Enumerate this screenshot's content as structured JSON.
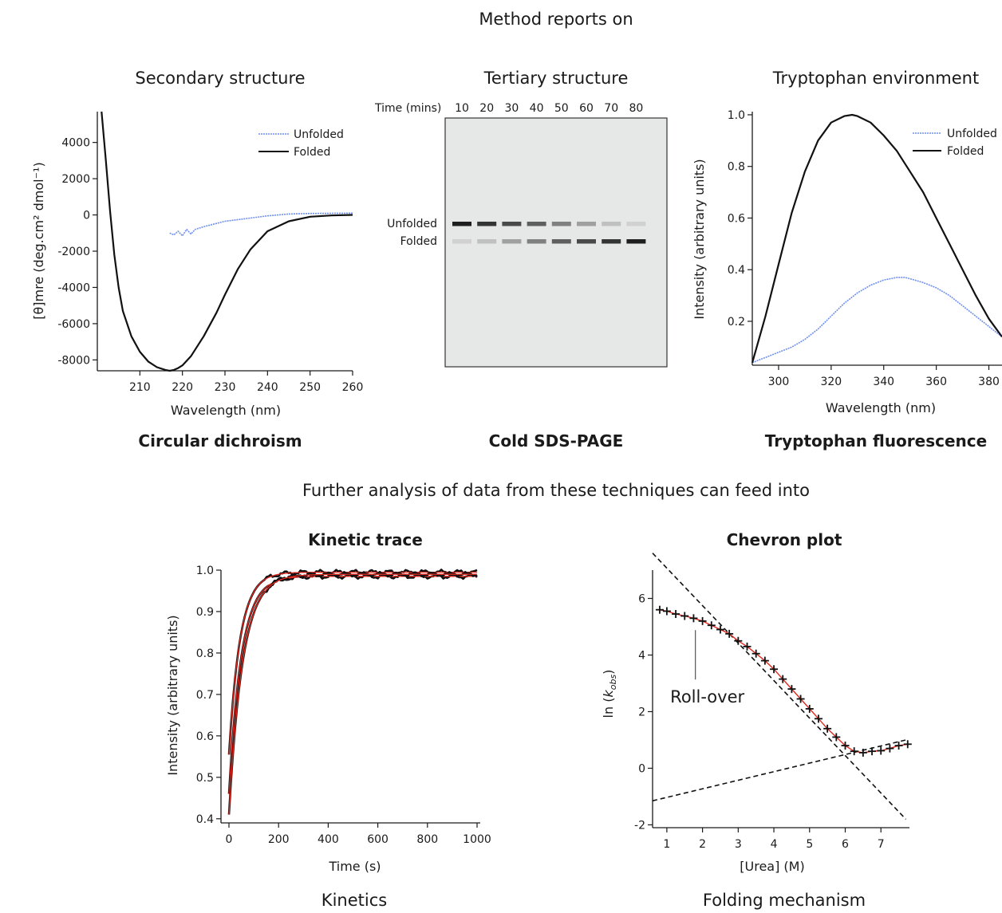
{
  "header": {
    "top_title": "Method reports on",
    "middle_text": "Further analysis of data from these techniques can feed into"
  },
  "colors": {
    "unfolded": "#6f8ff0",
    "folded": "#111111",
    "fit": "#e0281f",
    "gel_bg": "#e6e8e8"
  },
  "chart_data": [
    {
      "id": "cd",
      "type": "line",
      "title": "Secondary structure",
      "caption": "Circular dichroism",
      "xlabel": "Wavelength (nm)",
      "ylabel": "[θ]mre (deg.cm² dmol⁻¹)",
      "xlim": [
        200,
        260
      ],
      "ylim": [
        -8600,
        5700
      ],
      "xticks": [
        210,
        220,
        230,
        240,
        250,
        260
      ],
      "yticks": [
        4000,
        2000,
        0,
        -2000,
        -4000,
        -6000,
        -8000
      ],
      "legend": "top-right",
      "series": [
        {
          "name": "Unfolded",
          "style": "unfolded",
          "x": [
            217,
            218,
            219,
            220,
            221,
            222,
            223,
            225,
            230,
            235,
            240,
            245,
            250,
            255,
            260
          ],
          "y": [
            -1000,
            -1100,
            -900,
            -1150,
            -800,
            -1050,
            -800,
            -650,
            -350,
            -200,
            -50,
            50,
            80,
            90,
            100
          ]
        },
        {
          "name": "Folded",
          "style": "folded",
          "x": [
            201,
            202,
            203,
            204,
            205,
            206,
            208,
            210,
            212,
            214,
            216,
            217,
            218,
            219,
            220,
            222,
            225,
            228,
            230,
            233,
            236,
            240,
            245,
            250,
            255,
            260
          ],
          "y": [
            5700,
            3000,
            200,
            -2200,
            -4000,
            -5300,
            -6700,
            -7550,
            -8100,
            -8400,
            -8550,
            -8600,
            -8550,
            -8450,
            -8300,
            -7800,
            -6700,
            -5400,
            -4400,
            -3000,
            -1900,
            -900,
            -350,
            -100,
            -30,
            0
          ]
        }
      ]
    },
    {
      "id": "gel",
      "type": "heatmap",
      "title": "Tertiary structure",
      "caption": "Cold SDS-PAGE",
      "time_label": "Time (mins)",
      "times": [
        "10",
        "20",
        "30",
        "40",
        "50",
        "60",
        "70",
        "80"
      ],
      "rows": [
        {
          "label": "Unfolded",
          "intensity": [
            0.95,
            0.85,
            0.75,
            0.65,
            0.5,
            0.35,
            0.2,
            0.12
          ]
        },
        {
          "label": "Folded",
          "intensity": [
            0.12,
            0.2,
            0.35,
            0.5,
            0.65,
            0.75,
            0.85,
            0.95
          ]
        }
      ]
    },
    {
      "id": "fluor",
      "type": "line",
      "title": "Tryptophan environment",
      "caption": "Tryptophan fluorescence",
      "xlabel": "Wavelength (nm)",
      "ylabel": "Intensity (arbitrary  units)",
      "xlim": [
        290,
        385
      ],
      "ylim": [
        0.03,
        1.04
      ],
      "xticks": [
        "300",
        "320",
        "340",
        "360",
        "380"
      ],
      "yticks": [
        "1.0",
        "0.8",
        "0.6",
        "0.4",
        "0.2"
      ],
      "legend": "top-right",
      "series": [
        {
          "name": "Unfolded",
          "style": "unfolded",
          "x": [
            290,
            295,
            300,
            305,
            310,
            315,
            320,
            325,
            330,
            335,
            340,
            345,
            348,
            350,
            355,
            360,
            365,
            370,
            375,
            380,
            385
          ],
          "y": [
            0.04,
            0.06,
            0.08,
            0.1,
            0.13,
            0.17,
            0.22,
            0.27,
            0.31,
            0.34,
            0.36,
            0.37,
            0.37,
            0.365,
            0.35,
            0.33,
            0.3,
            0.26,
            0.22,
            0.18,
            0.14
          ]
        },
        {
          "name": "Folded",
          "style": "folded",
          "x": [
            290,
            295,
            300,
            305,
            310,
            315,
            320,
            325,
            328,
            330,
            335,
            340,
            345,
            350,
            355,
            360,
            365,
            370,
            375,
            380,
            385
          ],
          "y": [
            0.04,
            0.22,
            0.42,
            0.62,
            0.78,
            0.9,
            0.97,
            0.995,
            1.0,
            0.995,
            0.97,
            0.92,
            0.86,
            0.78,
            0.7,
            0.6,
            0.5,
            0.4,
            0.3,
            0.21,
            0.14
          ]
        }
      ]
    },
    {
      "id": "kinetic",
      "type": "line",
      "title": "Kinetic trace",
      "caption": "Kinetics",
      "xlabel": "Time (s)",
      "ylabel": "Intensity (arbitrary  units)",
      "xlim": [
        0,
        1000
      ],
      "ylim": [
        0.39,
        1.0
      ],
      "xticks": [
        "0",
        "200",
        "400",
        "600",
        "800",
        "1000"
      ],
      "yticks": [
        "1.0",
        "0.9",
        "0.8",
        "0.7",
        "0.6",
        "0.5",
        "0.4"
      ],
      "series": [
        {
          "name": "",
          "style": "folded",
          "start": 0.555,
          "plateau": 0.995,
          "tau": 45
        },
        {
          "name": "",
          "style": "folded",
          "start": 0.46,
          "plateau": 0.985,
          "tau": 50
        },
        {
          "name": "",
          "style": "folded",
          "start": 0.41,
          "plateau": 0.99,
          "tau": 55
        }
      ]
    },
    {
      "id": "chevron",
      "type": "scatter",
      "title": "Chevron plot",
      "caption": "Folding mechanism",
      "xlabel": "[Urea] (M)",
      "ylabel": "ln (k_obs)",
      "xlim": [
        0.6,
        7.8
      ],
      "ylim": [
        -2.1,
        7
      ],
      "xticks": [
        "1",
        "2",
        "3",
        "4",
        "5",
        "6",
        "7"
      ],
      "yticks": [
        "6",
        "4",
        "2",
        "0",
        "-2"
      ],
      "annotation": "Roll-over",
      "annotation_at": [
        1.8,
        5.05
      ],
      "points": {
        "x": [
          0.8,
          1.0,
          1.25,
          1.5,
          1.75,
          2.0,
          2.25,
          2.5,
          2.75,
          3.0,
          3.25,
          3.5,
          3.75,
          4.0,
          4.25,
          4.5,
          4.75,
          5.0,
          5.25,
          5.5,
          5.75,
          6.0,
          6.25,
          6.5,
          6.75,
          7.0,
          7.25,
          7.5,
          7.75
        ],
        "y": [
          5.6,
          5.55,
          5.45,
          5.38,
          5.3,
          5.2,
          5.05,
          4.9,
          4.75,
          4.5,
          4.3,
          4.05,
          3.8,
          3.5,
          3.15,
          2.8,
          2.45,
          2.1,
          1.75,
          1.4,
          1.1,
          0.8,
          0.6,
          0.55,
          0.6,
          0.62,
          0.7,
          0.8,
          0.85
        ]
      },
      "dashed_lines": [
        {
          "x": [
            0.6,
            7.7
          ],
          "y": [
            7.6,
            -1.8
          ]
        },
        {
          "x": [
            0.6,
            7.7
          ],
          "y": [
            -1.15,
            1.0
          ]
        }
      ]
    }
  ]
}
